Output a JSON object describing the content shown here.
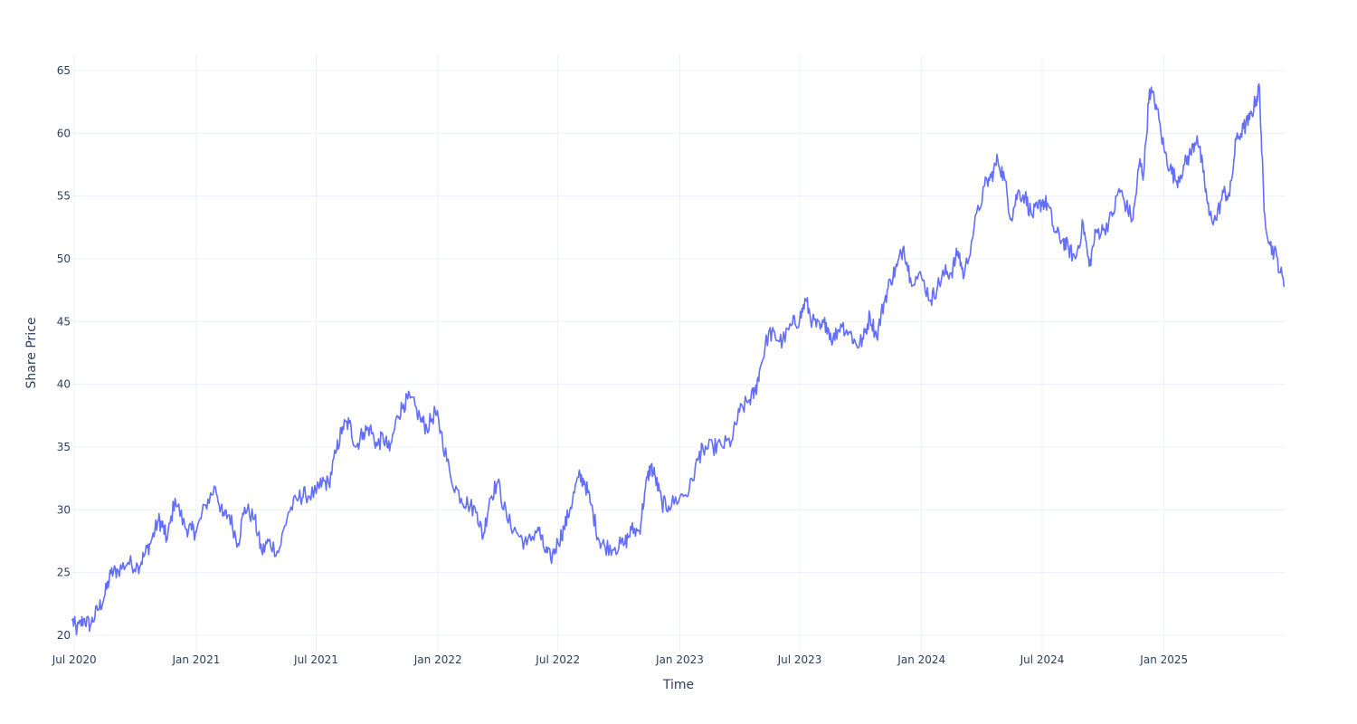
{
  "chart_data": {
    "type": "line",
    "title": "",
    "xlabel": "Time",
    "ylabel": "Share Price",
    "x_tick_labels": [
      {
        "date": "2020-07-01",
        "label": "Jul 2020"
      },
      {
        "date": "2021-01-01",
        "label": "Jan 2021"
      },
      {
        "date": "2021-07-01",
        "label": "Jul 2021"
      },
      {
        "date": "2022-01-01",
        "label": "Jan 2022"
      },
      {
        "date": "2022-07-01",
        "label": "Jul 2022"
      },
      {
        "date": "2023-01-01",
        "label": "Jan 2023"
      },
      {
        "date": "2023-07-01",
        "label": "Jul 2023"
      },
      {
        "date": "2024-01-01",
        "label": "Jan 2024"
      },
      {
        "date": "2024-07-01",
        "label": "Jul 2024"
      },
      {
        "date": "2025-01-01",
        "label": "Jan 2025"
      }
    ],
    "y_ticks": [
      20,
      25,
      30,
      35,
      40,
      45,
      50,
      55,
      60,
      65
    ],
    "xlim": [
      "2020-06-28",
      "2025-07-02"
    ],
    "ylim": [
      18.7,
      66.3
    ],
    "grid": true,
    "legend": false,
    "colors": {
      "line": "#636efa",
      "grid": "#ebf0f8",
      "zero_line": "#ebf0f8",
      "text": "#2a3f5f",
      "background": "#ffffff"
    },
    "series": [
      {
        "x": [
          "2020-06-28",
          "2020-07-05",
          "2020-07-15",
          "2020-07-25",
          "2020-08-05",
          "2020-08-15",
          "2020-08-25",
          "2020-09-05",
          "2020-09-20",
          "2020-10-05",
          "2020-10-15",
          "2020-10-25",
          "2020-11-05",
          "2020-11-12",
          "2020-11-18",
          "2020-11-30",
          "2020-12-15",
          "2020-12-25",
          "2021-01-01",
          "2021-01-15",
          "2021-01-30",
          "2021-02-10",
          "2021-02-20",
          "2021-03-05",
          "2021-03-15",
          "2021-03-30",
          "2021-04-10",
          "2021-04-20",
          "2021-05-05",
          "2021-05-20",
          "2021-06-05",
          "2021-06-15",
          "2021-07-01",
          "2021-07-10",
          "2021-07-20",
          "2021-08-01",
          "2021-08-10",
          "2021-08-20",
          "2021-08-30",
          "2021-09-10",
          "2021-09-20",
          "2021-10-01",
          "2021-10-10",
          "2021-10-20",
          "2021-11-01",
          "2021-11-10",
          "2021-11-20",
          "2021-12-05",
          "2021-12-15",
          "2021-12-28",
          "2022-01-05",
          "2022-01-20",
          "2022-02-05",
          "2022-02-15",
          "2022-03-01",
          "2022-03-10",
          "2022-03-20",
          "2022-04-01",
          "2022-04-15",
          "2022-05-01",
          "2022-05-15",
          "2022-06-01",
          "2022-06-10",
          "2022-06-20",
          "2022-07-01",
          "2022-07-10",
          "2022-07-20",
          "2022-08-01",
          "2022-08-10",
          "2022-08-20",
          "2022-09-01",
          "2022-09-10",
          "2022-09-25",
          "2022-10-10",
          "2022-10-20",
          "2022-11-01",
          "2022-11-10",
          "2022-11-18",
          "2022-11-25",
          "2022-12-05",
          "2022-12-15",
          "2023-01-01",
          "2023-01-15",
          "2023-01-30",
          "2023-02-05",
          "2023-02-20",
          "2023-03-05",
          "2023-03-20",
          "2023-04-01",
          "2023-04-15",
          "2023-04-25",
          "2023-05-01",
          "2023-05-15",
          "2023-05-25",
          "2023-06-05",
          "2023-06-20",
          "2023-07-01",
          "2023-07-10",
          "2023-07-20",
          "2023-08-01",
          "2023-08-10",
          "2023-08-20",
          "2023-09-01",
          "2023-09-15",
          "2023-09-25",
          "2023-10-05",
          "2023-10-15",
          "2023-10-25",
          "2023-11-05",
          "2023-11-15",
          "2023-11-25",
          "2023-12-05",
          "2023-12-15",
          "2024-01-01",
          "2024-01-15",
          "2024-01-25",
          "2024-02-05",
          "2024-02-15",
          "2024-02-25",
          "2024-03-05",
          "2024-03-20",
          "2024-04-05",
          "2024-04-15",
          "2024-04-25",
          "2024-05-05",
          "2024-05-15",
          "2024-05-25",
          "2024-06-05",
          "2024-06-15",
          "2024-06-25",
          "2024-07-01",
          "2024-07-10",
          "2024-07-20",
          "2024-08-01",
          "2024-08-10",
          "2024-08-20",
          "2024-09-01",
          "2024-09-10",
          "2024-09-20",
          "2024-10-01",
          "2024-10-15",
          "2024-10-25",
          "2024-11-05",
          "2024-11-15",
          "2024-11-25",
          "2024-12-01",
          "2024-12-10",
          "2024-12-20",
          "2025-01-01",
          "2025-01-10",
          "2025-01-20",
          "2025-02-01",
          "2025-02-10",
          "2025-02-20",
          "2025-03-01",
          "2025-03-10",
          "2025-03-20",
          "2025-04-01",
          "2025-04-10",
          "2025-04-20",
          "2025-05-01",
          "2025-05-10",
          "2025-05-20",
          "2025-05-25",
          "2025-06-01",
          "2025-06-10",
          "2025-06-20",
          "2025-07-01"
        ],
        "y": [
          21.2,
          20.4,
          21.3,
          20.8,
          22.0,
          23.0,
          24.9,
          25.2,
          25.8,
          25.5,
          26.4,
          27.5,
          29.2,
          28.6,
          27.6,
          30.9,
          28.6,
          28.4,
          28.2,
          30.4,
          31.8,
          29.5,
          29.6,
          27.3,
          30.2,
          29.3,
          26.6,
          27.5,
          26.6,
          29.8,
          31.0,
          31.2,
          31.3,
          32.2,
          32.1,
          34.8,
          36.6,
          36.9,
          35.0,
          36.2,
          36.5,
          35.1,
          35.8,
          34.7,
          37.5,
          38.4,
          38.9,
          37.3,
          36.5,
          37.8,
          36.3,
          32.6,
          30.9,
          30.5,
          29.8,
          27.8,
          30.9,
          32.2,
          29.3,
          28.1,
          27.2,
          28.6,
          26.9,
          26.1,
          27.4,
          28.5,
          30.2,
          32.6,
          32.3,
          30.4,
          27.6,
          27.1,
          27.0,
          27.3,
          28.4,
          28.3,
          31.7,
          33.5,
          32.6,
          30.5,
          30.3,
          31.0,
          31.5,
          34.3,
          34.8,
          35.0,
          35.1,
          35.5,
          37.8,
          38.7,
          39.4,
          41.0,
          44.1,
          43.8,
          43.4,
          44.8,
          45.2,
          46.7,
          45.0,
          44.4,
          44.9,
          43.5,
          44.8,
          44.1,
          43.1,
          43.6,
          45.5,
          43.8,
          46.5,
          48.3,
          49.4,
          51.0,
          48.5,
          48.5,
          46.7,
          47.8,
          48.9,
          48.9,
          50.6,
          48.6,
          52.4,
          55.8,
          56.5,
          57.9,
          56.4,
          53.2,
          55.3,
          55.0,
          53.5,
          54.0,
          54.6,
          54.3,
          52.1,
          51.5,
          50.8,
          50.0,
          52.8,
          49.4,
          52.1,
          52.3,
          53.4,
          55.6,
          54.2,
          53.1,
          57.7,
          56.7,
          63.5,
          62.3,
          58.7,
          57.2,
          56.2,
          57.5,
          58.4,
          59.8,
          56.9,
          53.5,
          53.1,
          55.3,
          55.0,
          59.5,
          60.4,
          61.1,
          62.7,
          63.6,
          53.8,
          51.1,
          50.2,
          47.8
        ]
      }
    ]
  }
}
